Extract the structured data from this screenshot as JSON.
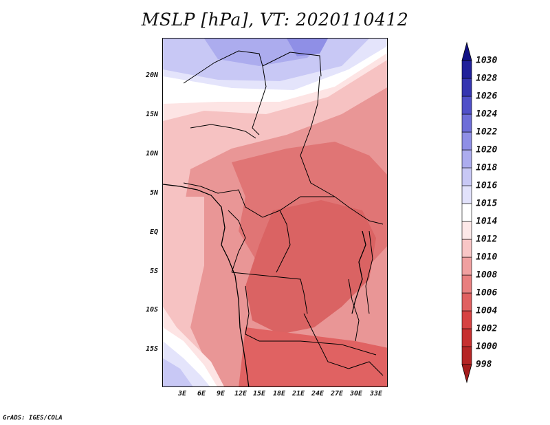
{
  "title": "MSLP [hPa], VT: 2020110412",
  "footer": "GrADS: IGES/COLA",
  "map": {
    "variable": "MSLP",
    "units": "hPa",
    "valid_time": "2020110412",
    "latitude_labels": [
      "20N",
      "15N",
      "10N",
      "5N",
      "EQ",
      "5S",
      "10S",
      "15S"
    ],
    "longitude_labels": [
      "3E",
      "6E",
      "9E",
      "12E",
      "15E",
      "18E",
      "21E",
      "24E",
      "27E",
      "30E",
      "33E"
    ]
  },
  "colorbar": {
    "levels": [
      "998",
      "1000",
      "1002",
      "1004",
      "1006",
      "1008",
      "1010",
      "1012",
      "1014",
      "1015",
      "1016",
      "1018",
      "1020",
      "1022",
      "1024",
      "1026",
      "1028",
      "1030"
    ],
    "colors": [
      "#a51c1c",
      "#b52525",
      "#c63030",
      "#d64242",
      "#e06060",
      "#e87f7f",
      "#f0a0a0",
      "#f8c6c6",
      "#fde8e8",
      "#ffffff",
      "#e2e2fb",
      "#c8c8f5",
      "#acacee",
      "#8f8fe6",
      "#6e6ed8",
      "#5050c8",
      "#3535b0",
      "#20209a",
      "#121285"
    ]
  }
}
